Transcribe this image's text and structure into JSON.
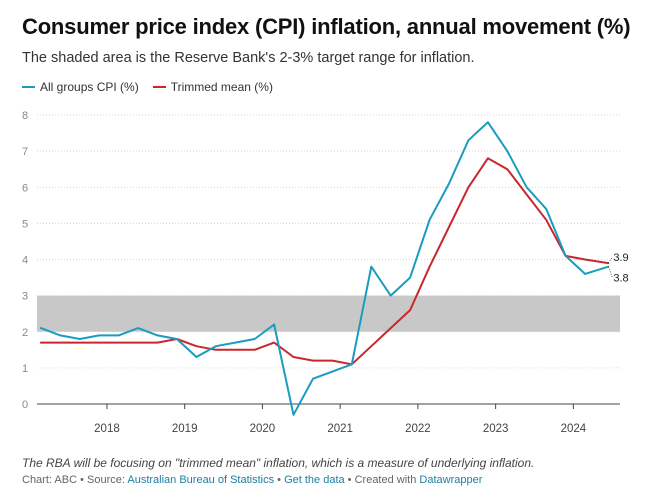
{
  "header": {
    "title": "Consumer price index (CPI) inflation, annual movement (%)",
    "subtitle": "The shaded area is the Reserve Bank's 2-3% target range for inflation."
  },
  "chart_data": {
    "type": "line",
    "title": "Consumer price index (CPI) inflation, annual movement (%)",
    "xlabel": "",
    "ylabel": "",
    "ylim": [
      0,
      8
    ],
    "y_ticks": [
      0,
      1,
      2,
      3,
      4,
      5,
      6,
      7,
      8
    ],
    "x_tick_labels": [
      "2018",
      "2019",
      "2020",
      "2021",
      "2022",
      "2023",
      "2024"
    ],
    "x_tick_values": [
      2018.0,
      2019.0,
      2020.0,
      2021.0,
      2022.0,
      2023.0,
      2024.0
    ],
    "xlim": [
      2017.1,
      2024.6
    ],
    "target_band": {
      "low": 2,
      "high": 3
    },
    "grid": true,
    "legend_position": "top-left",
    "series": [
      {
        "name": "All groups CPI (%)",
        "color": "#1a9bbf",
        "x": [
          2017.15,
          2017.4,
          2017.65,
          2017.9,
          2018.15,
          2018.4,
          2018.65,
          2018.9,
          2019.15,
          2019.4,
          2019.65,
          2019.9,
          2020.15,
          2020.4,
          2020.65,
          2020.9,
          2021.15,
          2021.4,
          2021.65,
          2021.9,
          2022.15,
          2022.4,
          2022.65,
          2022.9,
          2023.15,
          2023.4,
          2023.65,
          2023.9,
          2024.15,
          2024.45
        ],
        "values": [
          2.1,
          1.9,
          1.8,
          1.9,
          1.9,
          2.1,
          1.9,
          1.8,
          1.3,
          1.6,
          1.7,
          1.8,
          2.2,
          -0.3,
          0.7,
          0.9,
          1.1,
          3.8,
          3.0,
          3.5,
          5.1,
          6.1,
          7.3,
          7.8,
          7.0,
          6.0,
          5.4,
          4.1,
          3.6,
          3.8
        ]
      },
      {
        "name": "Trimmed mean (%)",
        "color": "#c8272d",
        "x": [
          2017.15,
          2017.4,
          2017.65,
          2017.9,
          2018.15,
          2018.4,
          2018.65,
          2018.9,
          2019.15,
          2019.4,
          2019.65,
          2019.9,
          2020.15,
          2020.4,
          2020.65,
          2020.9,
          2021.15,
          2021.4,
          2021.65,
          2021.9,
          2022.15,
          2022.4,
          2022.65,
          2022.9,
          2023.15,
          2023.4,
          2023.65,
          2023.9,
          2024.15,
          2024.45
        ],
        "values": [
          1.7,
          1.7,
          1.7,
          1.7,
          1.7,
          1.7,
          1.7,
          1.8,
          1.6,
          1.5,
          1.5,
          1.5,
          1.7,
          1.3,
          1.2,
          1.2,
          1.1,
          1.6,
          2.1,
          2.6,
          3.8,
          4.9,
          6.0,
          6.8,
          6.5,
          5.8,
          5.1,
          4.1,
          4.0,
          3.9
        ]
      }
    ],
    "end_labels": [
      {
        "series": "Trimmed mean (%)",
        "text": "3.9"
      },
      {
        "series": "All groups CPI (%)",
        "text": "3.8"
      }
    ]
  },
  "notes": {
    "description": "The RBA will be focusing on \"trimmed mean\" inflation, which is a measure of underlying inflation."
  },
  "footer": {
    "chart_prefix": "Chart: ABC",
    "separator": " • ",
    "source_prefix": "Source: ",
    "source_link": "Australian Bureau of Statistics",
    "get_data": "Get the data",
    "created_with": "Created with ",
    "tool": "Datawrapper"
  }
}
